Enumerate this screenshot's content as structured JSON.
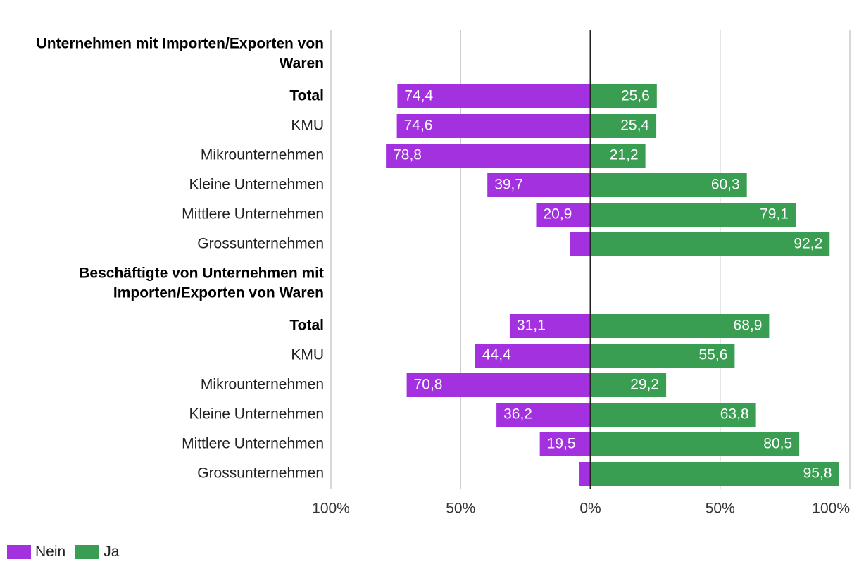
{
  "chart_data": {
    "type": "bar",
    "orientation": "horizontal-diverging",
    "title": "",
    "xlim": [
      -100,
      100
    ],
    "x_ticks": [
      "100%",
      "50%",
      "0%",
      "50%",
      "100%"
    ],
    "legend": [
      {
        "name": "Nein",
        "color": "#a431e0"
      },
      {
        "name": "Ja",
        "color": "#3a9e52"
      }
    ],
    "groups": [
      {
        "title": "Unternehmen mit Importen/Exporten von Waren",
        "title_lines": [
          "Unternehmen mit Importen/Exporten von",
          "Waren"
        ],
        "rows": [
          {
            "label": "Total",
            "bold": true,
            "nein": 74.4,
            "ja": 25.6,
            "nein_label": "74,4",
            "ja_label": "25,6"
          },
          {
            "label": "KMU",
            "bold": false,
            "nein": 74.6,
            "ja": 25.4,
            "nein_label": "74,6",
            "ja_label": "25,4"
          },
          {
            "label": "Mikrounternehmen",
            "bold": false,
            "nein": 78.8,
            "ja": 21.2,
            "nein_label": "78,8",
            "ja_label": "21,2"
          },
          {
            "label": "Kleine Unternehmen",
            "bold": false,
            "nein": 39.7,
            "ja": 60.3,
            "nein_label": "39,7",
            "ja_label": "60,3"
          },
          {
            "label": "Mittlere Unternehmen",
            "bold": false,
            "nein": 20.9,
            "ja": 79.1,
            "nein_label": "20,9",
            "ja_label": "79,1"
          },
          {
            "label": "Grossunternehmen",
            "bold": false,
            "nein": 7.8,
            "ja": 92.2,
            "nein_label": "",
            "ja_label": "92,2"
          }
        ]
      },
      {
        "title": "Beschäftigte von Unternehmen mit Importen/Exporten von Waren",
        "title_lines": [
          "Beschäftigte von Unternehmen mit",
          "Importen/Exporten von Waren"
        ],
        "rows": [
          {
            "label": "Total",
            "bold": true,
            "nein": 31.1,
            "ja": 68.9,
            "nein_label": "31,1",
            "ja_label": "68,9"
          },
          {
            "label": "KMU",
            "bold": false,
            "nein": 44.4,
            "ja": 55.6,
            "nein_label": "44,4",
            "ja_label": "55,6"
          },
          {
            "label": "Mikrounternehmen",
            "bold": false,
            "nein": 70.8,
            "ja": 29.2,
            "nein_label": "70,8",
            "ja_label": "29,2"
          },
          {
            "label": "Kleine Unternehmen",
            "bold": false,
            "nein": 36.2,
            "ja": 63.8,
            "nein_label": "36,2",
            "ja_label": "63,8"
          },
          {
            "label": "Mittlere Unternehmen",
            "bold": false,
            "nein": 19.5,
            "ja": 80.5,
            "nein_label": "19,5",
            "ja_label": "80,5"
          },
          {
            "label": "Grossunternehmen",
            "bold": false,
            "nein": 4.2,
            "ja": 95.8,
            "nein_label": "",
            "ja_label": "95,8"
          }
        ]
      }
    ]
  }
}
